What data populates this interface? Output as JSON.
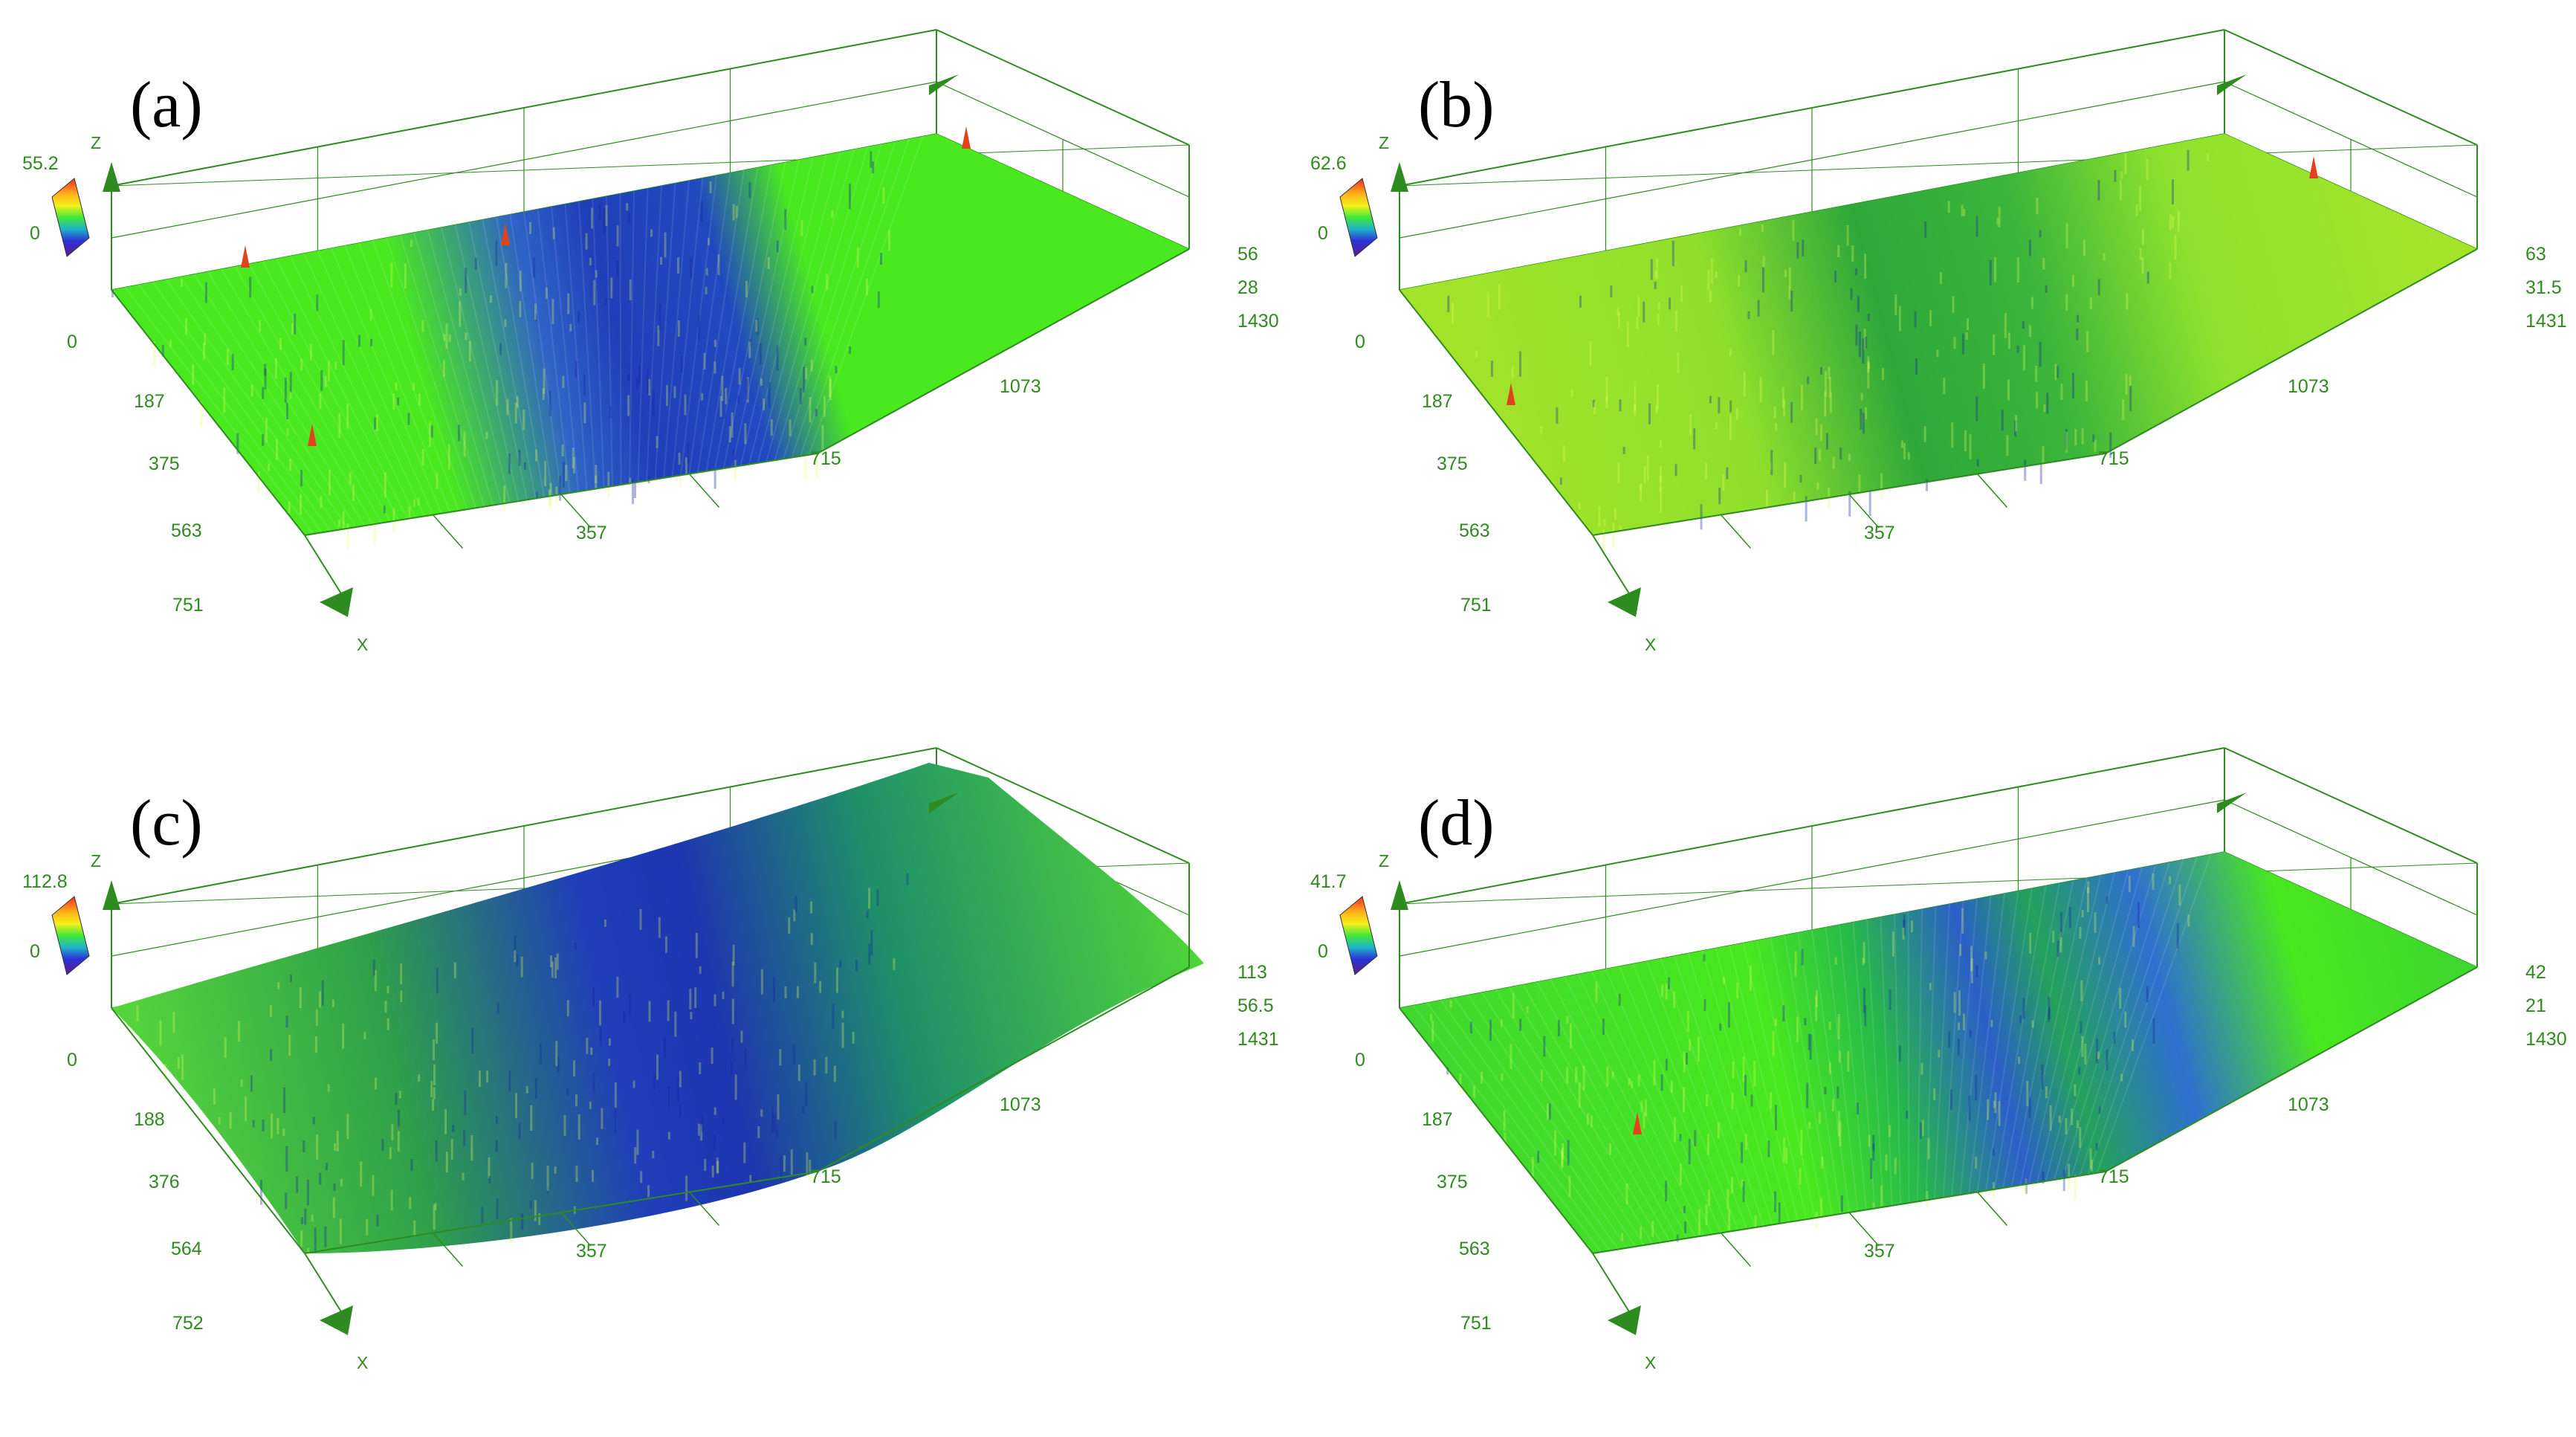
{
  "colors": {
    "frame": "#2e8b1f",
    "tick_text": "#2f8a1f",
    "surface_green": "#49e81f",
    "surface_yellow_green": "#a6e42a",
    "surface_blue": "#1f3fb8",
    "surface_teal": "#1f8f6a",
    "peak_red": "#e2431c"
  },
  "panels": [
    {
      "id": "a",
      "label": "(a)",
      "z_axis_name": "Z",
      "x_axis_name": "X",
      "colorbar": {
        "max_label": "55.2",
        "min_label": "0"
      },
      "x_ticks": [
        "0",
        "187",
        "375",
        "563",
        "751"
      ],
      "y_ticks": [
        "357",
        "715",
        "1073"
      ],
      "y_end_tick": "1430",
      "z_ticks": [
        "56",
        "28"
      ],
      "surface": "striped surface, flat green plateaus with a dark blue worn band in the middle"
    },
    {
      "id": "b",
      "label": "(b)",
      "z_axis_name": "Z",
      "x_axis_name": "X",
      "colorbar": {
        "max_label": "62.6",
        "min_label": "0"
      },
      "x_ticks": [
        "0",
        "187",
        "375",
        "563",
        "751"
      ],
      "y_ticks": [
        "357",
        "715",
        "1073"
      ],
      "y_end_tick": "1431",
      "z_ticks": [
        "63",
        "31.5"
      ],
      "surface": "yellow-green surface with a shallow darker green pitted region"
    },
    {
      "id": "c",
      "label": "(c)",
      "z_axis_name": "Z",
      "x_axis_name": "X",
      "colorbar": {
        "max_label": "112.8",
        "min_label": "0"
      },
      "x_ticks": [
        "0",
        "188",
        "376",
        "564",
        "752"
      ],
      "y_ticks": [
        "357",
        "715",
        "1073"
      ],
      "y_end_tick": "1431",
      "z_ticks": [
        "113",
        "56.5"
      ],
      "surface": "curved surface with a deep blue groove across the center"
    },
    {
      "id": "d",
      "label": "(d)",
      "z_axis_name": "Z",
      "x_axis_name": "X",
      "colorbar": {
        "max_label": "41.7",
        "min_label": "0"
      },
      "x_ticks": [
        "0",
        "187",
        "375",
        "563",
        "751"
      ],
      "y_ticks": [
        "357",
        "715",
        "1073"
      ],
      "y_end_tick": "1430",
      "z_ticks": [
        "42",
        "21"
      ],
      "surface": "smooth green surface with blue streaks and pits"
    }
  ]
}
